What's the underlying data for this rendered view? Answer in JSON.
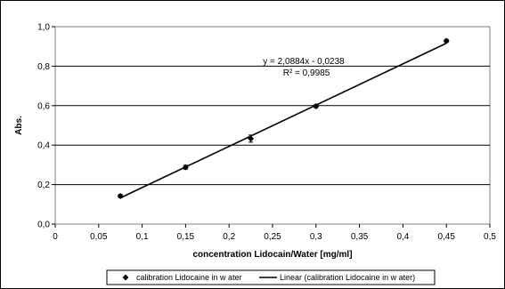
{
  "chart_data": {
    "type": "scatter",
    "xlabel": "concentration Lidocain/Water [mg/ml]",
    "ylabel": "Abs.",
    "xlim": [
      0,
      0.5
    ],
    "ylim": [
      0,
      1.0
    ],
    "x_ticks": [
      "0",
      "0,05",
      "0,1",
      "0,15",
      "0,2",
      "0,25",
      "0,3",
      "0,35",
      "0,4",
      "0,45",
      "0,5"
    ],
    "y_ticks": [
      "0,0",
      "0,2",
      "0,4",
      "0,6",
      "0,8",
      "1,0"
    ],
    "grid": "horizontal",
    "legend_position": "bottom",
    "series": [
      {
        "name": "calibration Lidocaine in w ater",
        "type": "scatter",
        "marker": "diamond",
        "color": "#000000",
        "x": [
          0.075,
          0.15,
          0.225,
          0.3,
          0.45
        ],
        "y": [
          0.142,
          0.288,
          0.433,
          0.597,
          0.928
        ],
        "error": [
          0.008,
          0.01,
          0.018,
          0.008,
          0.008
        ]
      },
      {
        "name": "Linear (calibration Lidocaine in w ater)",
        "type": "line",
        "color": "#000000",
        "slope": 2.0884,
        "intercept": -0.0238,
        "x_range": [
          0.075,
          0.45
        ]
      }
    ],
    "annotations": {
      "equation": "y = 2,0884x - 0,0238",
      "r_squared": "R² = 0,9985"
    }
  }
}
